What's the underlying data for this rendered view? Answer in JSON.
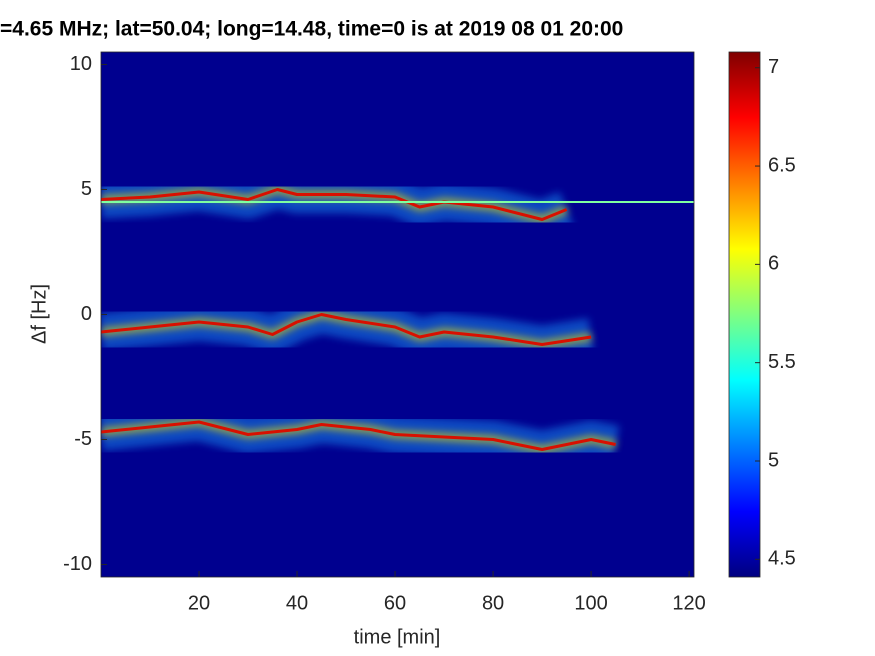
{
  "chart_data": {
    "type": "line",
    "title": "=4.65 MHz;  lat=50.04; long=14.48, time=0 is at 2019 08 01 20:00",
    "x_label": "time [min]",
    "y_label": "Δf [Hz]",
    "xlim": [
      0,
      121
    ],
    "ylim": [
      -10.5,
      10.5
    ],
    "xticks": [
      20,
      40,
      60,
      80,
      100,
      120
    ],
    "yticks": [
      -10,
      -5,
      0,
      5,
      10
    ],
    "background": "#00008f",
    "colormap": "jet",
    "clim": [
      4.41,
      7.08
    ],
    "cticks": [
      4.5,
      5,
      5.5,
      6,
      6.5,
      7
    ],
    "series": [
      {
        "color": "#d81000",
        "x": [
          0,
          10,
          20,
          30,
          36,
          40,
          50,
          60,
          65,
          70,
          80,
          90,
          95
        ],
        "values": [
          4.6,
          4.7,
          4.9,
          4.6,
          5.0,
          4.8,
          4.8,
          4.7,
          4.3,
          4.5,
          4.3,
          3.8,
          4.2
        ]
      },
      {
        "color": "#d81000",
        "x": [
          0,
          10,
          20,
          30,
          35,
          40,
          45,
          50,
          60,
          65,
          70,
          80,
          90,
          100
        ],
        "values": [
          -0.7,
          -0.5,
          -0.3,
          -0.5,
          -0.8,
          -0.3,
          0,
          -0.2,
          -0.5,
          -0.9,
          -0.7,
          -0.9,
          -1.2,
          -0.9
        ]
      },
      {
        "color": "#d81000",
        "x": [
          0,
          10,
          20,
          30,
          40,
          45,
          55,
          60,
          70,
          80,
          90,
          100,
          105
        ],
        "values": [
          -4.7,
          -4.5,
          -4.3,
          -4.8,
          -4.6,
          -4.4,
          -4.6,
          -4.8,
          -4.9,
          -5.0,
          -5.4,
          -5.0,
          -5.2
        ]
      },
      {
        "color": "#7fffa0",
        "x": [
          0,
          121
        ],
        "values": [
          4.5,
          4.5
        ]
      }
    ]
  }
}
